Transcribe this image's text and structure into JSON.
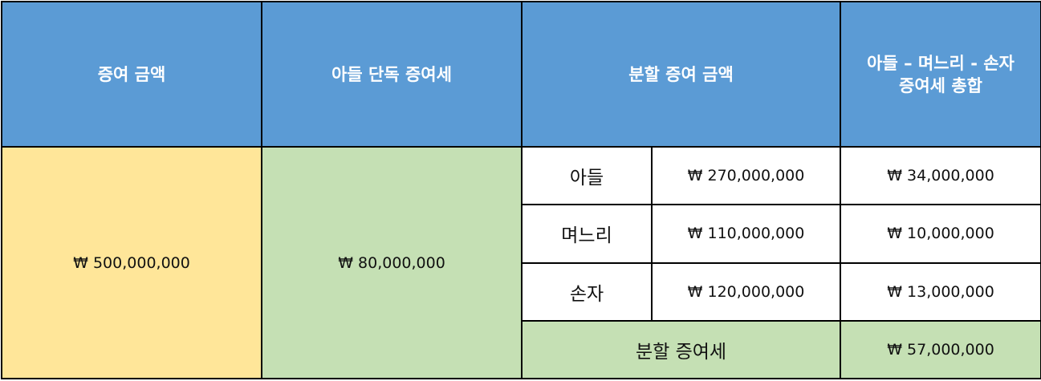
{
  "colors": {
    "header_bg": "#5b9bd5",
    "gift_amount_bg": "#ffe699",
    "total_green_bg": "#c5e0b4",
    "cell_white_bg": "#ffffff",
    "border": "#000000"
  },
  "header": {
    "gift_amount": "증여 금액",
    "son_only_tax": "아들 단독 증여세",
    "split_gift_amount": "분할 증여 금액",
    "total_tax_line1": "아들 – 며느리 - 손자",
    "total_tax_line2": "증여세 총합"
  },
  "summary": {
    "gift_amount": "₩ 500,000,000",
    "son_only_tax": "₩ 80,000,000"
  },
  "rows": [
    {
      "recipient": "아들",
      "amount": "₩ 270,000,000",
      "tax": "₩ 34,000,000"
    },
    {
      "recipient": "며느리",
      "amount": "₩ 110,000,000",
      "tax": "₩ 10,000,000"
    },
    {
      "recipient": "손자",
      "amount": "₩ 120,000,000",
      "tax": "₩ 13,000,000"
    }
  ],
  "footer": {
    "split_tax_label": "분할 증여세",
    "split_tax_total": "₩ 57,000,000"
  }
}
